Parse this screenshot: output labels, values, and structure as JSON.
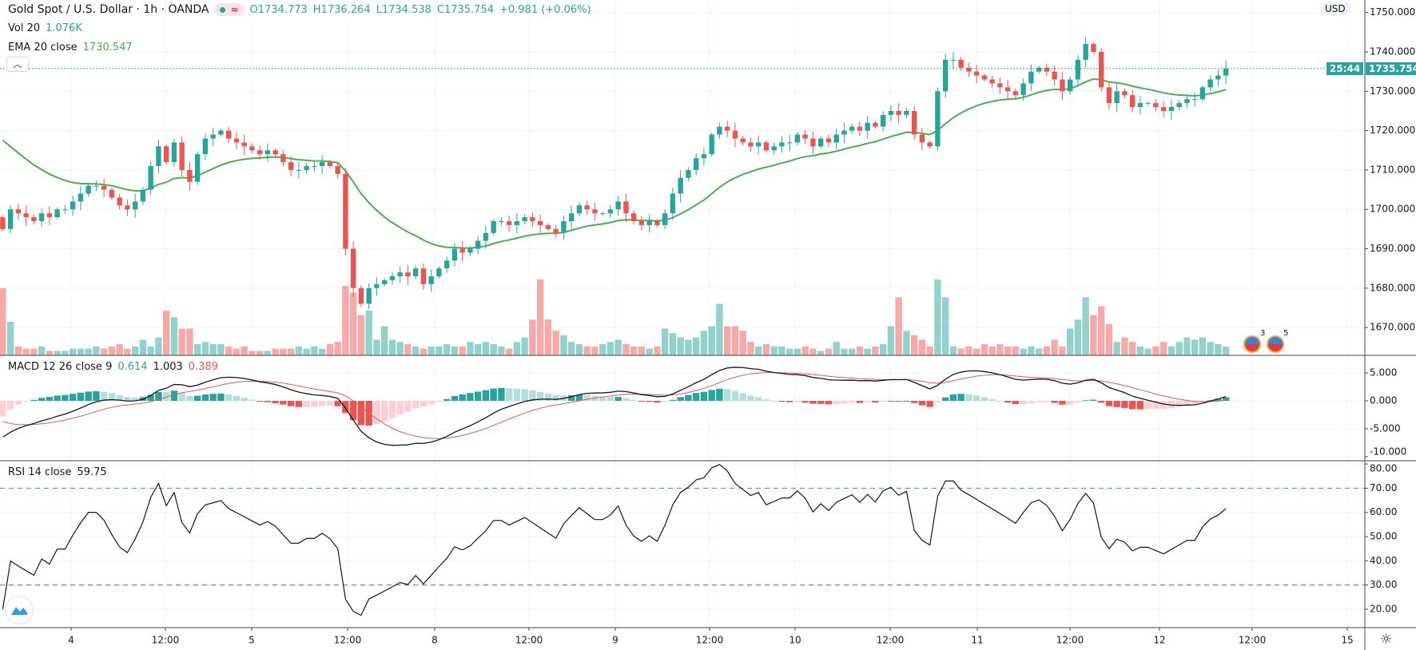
{
  "header": {
    "symbol": "Gold Spot / U.S. Dollar · 1h · OANDA",
    "open_label": "O1734.773",
    "high_label": "H1736.264",
    "low_label": "L1734.538",
    "close_label": "C1735.754",
    "change_label": "+0.981 (+0.06%)"
  },
  "indicators": {
    "vol": {
      "label": "Vol 20",
      "value": "1.076K"
    },
    "ema": {
      "label": "EMA 20 close",
      "value": "1730.547"
    },
    "macd": {
      "label": "MACD 12 26 close 9",
      "hist": "0.614",
      "macd": "1.003",
      "signal": "0.389"
    },
    "rsi": {
      "label": "RSI 14 close",
      "value": "59.75"
    }
  },
  "price_axis": {
    "currency": "USD",
    "ticks": [
      "1750.000",
      "1740.000",
      "1730.000",
      "1720.000",
      "1710.000",
      "1700.000",
      "1690.000",
      "1680.000",
      "1670.000"
    ],
    "last_price": "1735.754",
    "countdown": "25:44"
  },
  "macd_axis": {
    "ticks": [
      "5.000",
      "0.000",
      "-5.000",
      "-10.000"
    ]
  },
  "rsi_axis": {
    "ticks": [
      "80.00",
      "70.00",
      "60.00",
      "50.00",
      "40.00",
      "30.00",
      "20.00"
    ]
  },
  "time_axis": {
    "ticks": [
      "4",
      "12:00",
      "5",
      "12:00",
      "8",
      "12:00",
      "9",
      "12:00",
      "10",
      "12:00",
      "11",
      "12:00",
      "12",
      "12:00",
      "15"
    ]
  },
  "events": [
    {
      "count": "3"
    },
    {
      "count": "5"
    }
  ],
  "colors": {
    "up": "#26a69a",
    "down": "#ef5350",
    "ema": "#4caf50",
    "macd": "#131722",
    "signal": "#ef5350",
    "rsi": "#131722"
  },
  "chart_data": {
    "type": "candlestick",
    "title": "Gold Spot / U.S. Dollar · 1h · OANDA",
    "ylim": [
      1657.8,
      1753.2
    ],
    "close": [
      1695,
      1700,
      1699,
      1698,
      1697,
      1699,
      1698,
      1700,
      1700,
      1702,
      1704,
      1706,
      1706,
      1705,
      1703,
      1701,
      1700,
      1702,
      1705,
      1711,
      1716,
      1712,
      1717,
      1710,
      1707,
      1714,
      1718,
      1719,
      1720,
      1718,
      1717,
      1716,
      1715,
      1714,
      1715,
      1714,
      1712,
      1710,
      1710,
      1711,
      1711,
      1712,
      1711,
      1709,
      1690,
      1680,
      1676,
      1680,
      1681,
      1682,
      1683,
      1684,
      1683,
      1685,
      1681,
      1683,
      1685,
      1687,
      1690,
      1689,
      1690,
      1692,
      1694,
      1697,
      1697,
      1696,
      1697,
      1698,
      1697,
      1696,
      1695,
      1694,
      1697,
      1699,
      1701,
      1700,
      1699,
      1699,
      1700,
      1702,
      1699,
      1697,
      1696,
      1697,
      1696,
      1699,
      1704,
      1708,
      1710,
      1713,
      1714,
      1719,
      1721,
      1720,
      1718,
      1717,
      1716,
      1717,
      1715,
      1716,
      1717,
      1717,
      1719,
      1718,
      1716,
      1718,
      1717,
      1719,
      1720,
      1721,
      1720,
      1722,
      1721,
      1724,
      1725,
      1724,
      1725,
      1719,
      1717,
      1716,
      1730,
      1738,
      1738,
      1736,
      1735,
      1734,
      1733,
      1732,
      1731,
      1730,
      1729,
      1732,
      1735,
      1736,
      1735,
      1733,
      1730,
      1733,
      1738,
      1742,
      1740,
      1731,
      1727,
      1730,
      1729,
      1726,
      1727,
      1727,
      1726,
      1725,
      1726,
      1727,
      1728,
      1728,
      1731,
      1733,
      1734,
      1735.754
    ],
    "volume_k": [
      3.0,
      1.5,
      0.4,
      0.3,
      0.3,
      0.4,
      0.2,
      0.2,
      0.2,
      0.3,
      0.3,
      0.3,
      0.4,
      0.3,
      0.4,
      0.5,
      0.3,
      0.4,
      0.7,
      0.4,
      0.8,
      2.0,
      1.7,
      1.2,
      1.2,
      0.5,
      0.6,
      0.5,
      0.5,
      0.4,
      0.3,
      0.4,
      0.2,
      0.2,
      0.2,
      0.3,
      0.3,
      0.3,
      0.4,
      0.3,
      0.4,
      0.3,
      0.5,
      0.6,
      3.1,
      2.8,
      1.8,
      2.0,
      0.7,
      1.3,
      0.7,
      0.6,
      0.5,
      0.4,
      0.3,
      0.4,
      0.4,
      0.5,
      0.4,
      0.4,
      0.6,
      0.5,
      0.6,
      0.5,
      0.4,
      0.3,
      0.6,
      0.8,
      1.6,
      3.4,
      1.6,
      1.1,
      0.9,
      0.6,
      0.5,
      0.4,
      0.4,
      0.5,
      0.6,
      0.7,
      0.5,
      0.4,
      0.4,
      0.3,
      0.4,
      1.2,
      1.0,
      0.8,
      0.7,
      0.8,
      1.1,
      1.3,
      2.3,
      1.3,
      1.3,
      1.1,
      0.6,
      0.4,
      0.5,
      0.4,
      0.4,
      0.3,
      0.3,
      0.4,
      0.3,
      0.2,
      0.3,
      0.6,
      0.3,
      0.3,
      0.4,
      0.3,
      0.4,
      0.5,
      1.3,
      2.6,
      1.1,
      0.9,
      0.7,
      0.4,
      3.4,
      2.6,
      0.4,
      0.3,
      0.4,
      0.3,
      0.5,
      0.4,
      0.5,
      0.4,
      0.4,
      0.3,
      0.4,
      0.3,
      0.4,
      0.7,
      0.4,
      1.2,
      1.6,
      2.6,
      1.8,
      2.2,
      1.4,
      0.6,
      0.8,
      0.6,
      0.4,
      0.3,
      0.4,
      0.6,
      0.4,
      0.6,
      0.8,
      0.7,
      0.8,
      0.6,
      0.5,
      0.4
    ],
    "rsi_bands": [
      70,
      30
    ],
    "macd_ylim": [
      -10,
      5
    ],
    "rsi_ylim": [
      15,
      80
    ]
  }
}
